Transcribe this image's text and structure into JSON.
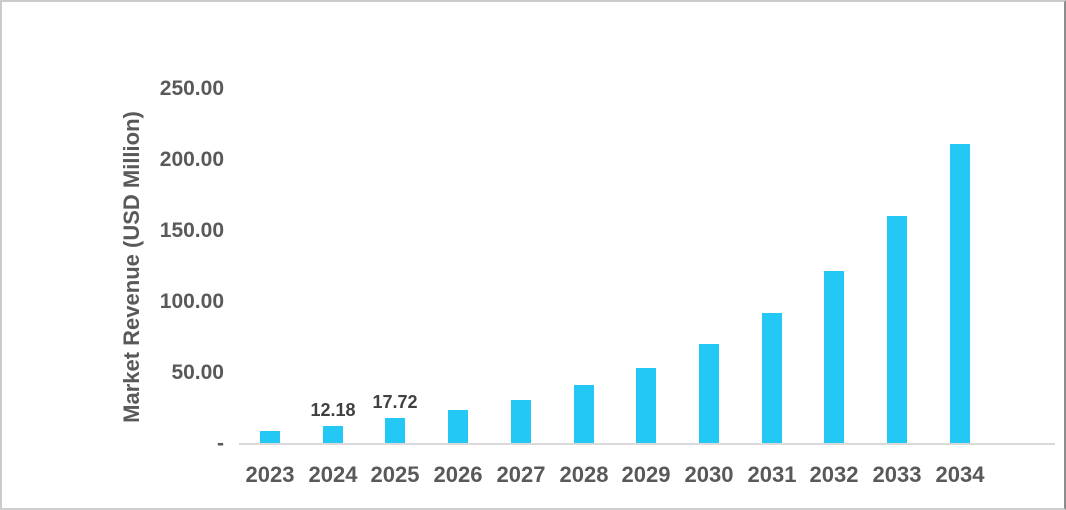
{
  "chart_data": {
    "type": "bar",
    "title": "",
    "xlabel": "",
    "ylabel": "Market Revenue (USD Million)",
    "categories": [
      "2023",
      "2024",
      "2025",
      "2026",
      "2027",
      "2028",
      "2029",
      "2030",
      "2031",
      "2032",
      "2033",
      "2034"
    ],
    "values": [
      8.4,
      12.18,
      17.72,
      23.2,
      30.4,
      40.6,
      52.9,
      69.8,
      91.7,
      121.0,
      159.7,
      210.6
    ],
    "data_labels": {
      "2024": "12.18",
      "2025": "17.72"
    },
    "yticks": [
      {
        "value": 250,
        "label": "250.00"
      },
      {
        "value": 200,
        "label": "200.00"
      },
      {
        "value": 150,
        "label": "150.00"
      },
      {
        "value": 100,
        "label": "100.00"
      },
      {
        "value": 50,
        "label": "50.00"
      },
      {
        "value": 0,
        "label": "-"
      }
    ],
    "ylim": [
      0,
      250
    ],
    "grid": false,
    "legend": null,
    "colors": {
      "bar": "#23c8f5",
      "axis_line": "#d9d9d9",
      "tick_label": "#595959",
      "data_label": "#404040",
      "frame_border": "#cbcbcb"
    }
  }
}
